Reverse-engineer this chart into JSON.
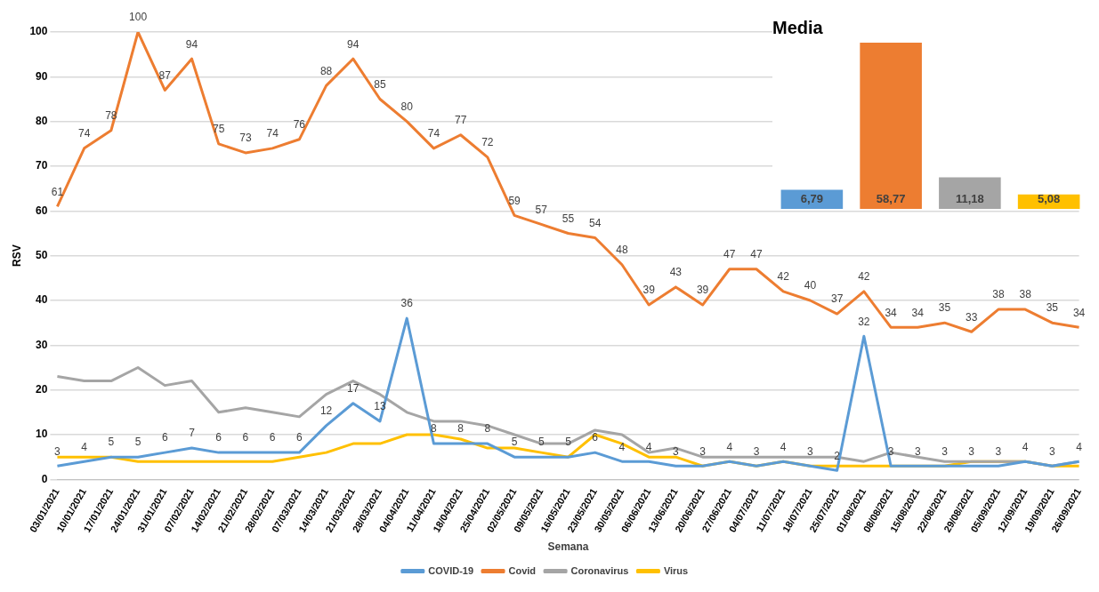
{
  "chart_data": [
    {
      "type": "line",
      "xlabel": "Semana",
      "ylabel": "RSV",
      "categories": [
        "03/01/2021",
        "10/01/2021",
        "17/01/2021",
        "24/01/2021",
        "31/01/2021",
        "07/02/2021",
        "14/02/2021",
        "21/02/2021",
        "28/02/2021",
        "07/03/2021",
        "14/03/2021",
        "21/03/2021",
        "28/03/2021",
        "04/04/2021",
        "11/04/2021",
        "18/04/2021",
        "25/04/2021",
        "02/05/2021",
        "09/05/2021",
        "16/05/2021",
        "23/05/2021",
        "30/05/2021",
        "06/06/2021",
        "13/06/2021",
        "20/06/2021",
        "27/06/2021",
        "04/07/2021",
        "11/07/2021",
        "18/07/2021",
        "25/07/2021",
        "01/08/2021",
        "08/08/2021",
        "15/08/2021",
        "22/08/2021",
        "29/08/2021",
        "05/09/2021",
        "12/09/2021",
        "19/09/2021",
        "26/09/2021"
      ],
      "series": [
        {
          "name": "COVID-19",
          "color": "#5b9bd5",
          "values": [
            3,
            4,
            5,
            5,
            6,
            7,
            6,
            6,
            6,
            6,
            12,
            17,
            13,
            36,
            8,
            8,
            8,
            5,
            5,
            5,
            6,
            4,
            4,
            3,
            3,
            4,
            3,
            4,
            3,
            2,
            32,
            3,
            3,
            3,
            3,
            3,
            4,
            3,
            4
          ],
          "value_labels": [
            "3",
            "4",
            "5",
            "5",
            "6",
            "7",
            "6",
            "6",
            "6",
            "6",
            "12",
            "17",
            "13",
            "36",
            "8",
            "8",
            "8",
            "5",
            "5",
            "5",
            "6",
            "4",
            "4",
            "3",
            "3",
            "4",
            "3",
            "4",
            "3",
            "2",
            "32",
            "3",
            "3",
            "3",
            "3",
            "3",
            "4",
            "3",
            "4"
          ]
        },
        {
          "name": "Covid",
          "color": "#ed7d31",
          "values": [
            61,
            74,
            78,
            100,
            87,
            94,
            75,
            73,
            74,
            76,
            88,
            94,
            85,
            80,
            74,
            77,
            72,
            59,
            57,
            55,
            54,
            48,
            39,
            43,
            39,
            47,
            47,
            42,
            40,
            37,
            42,
            34,
            34,
            35,
            33,
            38,
            38,
            35,
            34
          ],
          "value_labels": [
            "61",
            "74",
            "78",
            "100",
            "87",
            "94",
            "75",
            "73",
            "74",
            "76",
            "88",
            "94",
            "85",
            "80",
            "74",
            "77",
            "72",
            "59",
            "57",
            "55",
            "54",
            "48",
            "39",
            "43",
            "39",
            "47",
            "47",
            "42",
            "40",
            "37",
            "42",
            "34",
            "34",
            "35",
            "33",
            "38",
            "38",
            "35",
            "34"
          ]
        },
        {
          "name": "Coronavirus",
          "color": "#a5a5a5",
          "values": [
            23,
            22,
            22,
            25,
            21,
            22,
            15,
            16,
            15,
            14,
            19,
            22,
            19,
            15,
            13,
            13,
            12,
            10,
            8,
            8,
            11,
            10,
            6,
            7,
            5,
            5,
            5,
            5,
            5,
            5,
            4,
            6,
            5,
            4,
            4,
            4,
            4,
            3,
            4
          ]
        },
        {
          "name": "Virus",
          "color": "#ffc000",
          "values": [
            5,
            5,
            5,
            4,
            4,
            4,
            4,
            4,
            4,
            5,
            6,
            8,
            8,
            10,
            10,
            9,
            7,
            7,
            6,
            5,
            10,
            8,
            5,
            5,
            3,
            4,
            3,
            4,
            3,
            3,
            3,
            3,
            3,
            3,
            4,
            4,
            4,
            3,
            3
          ]
        }
      ],
      "ylim": [
        0,
        100
      ],
      "yticks": [
        0,
        10,
        20,
        30,
        40,
        50,
        60,
        70,
        80,
        90,
        100
      ],
      "grid": "y",
      "legend": "bottom"
    },
    {
      "type": "bar",
      "title": "Media",
      "categories": [
        null,
        null,
        null,
        null
      ],
      "values": [
        6.79,
        58.77,
        11.18,
        5.08
      ],
      "colors": [
        "#5b9bd5",
        "#ed7d31",
        "#a5a5a5",
        "#ffc000"
      ],
      "value_labels": [
        "6,79",
        "58,77",
        "11,18",
        "5,08"
      ]
    }
  ]
}
